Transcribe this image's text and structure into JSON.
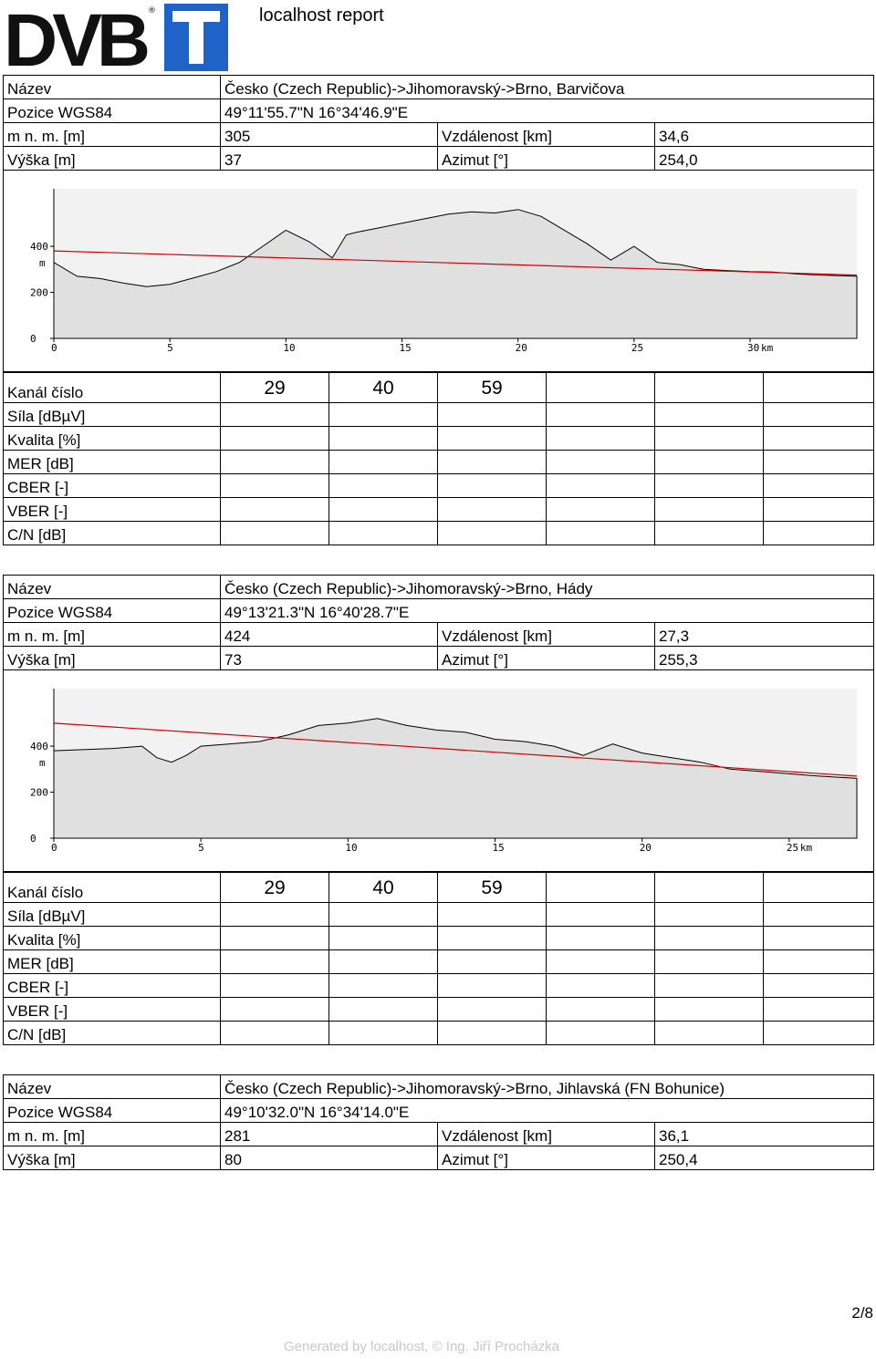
{
  "header": {
    "logo_text": "DVB-T",
    "title": "localhost report"
  },
  "labels": {
    "name": "Název",
    "position": "Pozice WGS84",
    "altitude": "m n. m. [m]",
    "distance": "Vzdálenost [km]",
    "height": "Výška [m]",
    "azimuth": "Azimut [°]",
    "channel": "Kanál číslo",
    "strength": "Síla [dBµV]",
    "quality": "Kvalita [%]",
    "mer": "MER [dB]",
    "cber": "CBER [-]",
    "vber": "VBER [-]",
    "cn": "C/N [dB]"
  },
  "sites": [
    {
      "name": "Česko (Czech Republic)->Jihomoravský->Brno, Barvičova",
      "position": "49°11'55.7\"N 16°34'46.9\"E",
      "altitude": "305",
      "distance": "34,6",
      "height": "37",
      "azimuth": "254,0",
      "channels": [
        "29",
        "40",
        "59",
        "",
        "",
        ""
      ]
    },
    {
      "name": "Česko (Czech Republic)->Jihomoravský->Brno, Hády",
      "position": "49°13'21.3\"N 16°40'28.7\"E",
      "altitude": "424",
      "distance": "27,3",
      "height": "73",
      "azimuth": "255,3",
      "channels": [
        "29",
        "40",
        "59",
        "",
        "",
        ""
      ]
    },
    {
      "name": "Česko (Czech Republic)->Jihomoravský->Brno, Jihlavská (FN Bohunice)",
      "position": "49°10'32.0\"N 16°34'14.0\"E",
      "altitude": "281",
      "distance": "36,1",
      "height": "80",
      "azimuth": "250,4"
    }
  ],
  "profiles": [
    {
      "x_ticks": [
        "0",
        "5",
        "10",
        "15",
        "20",
        "25",
        "30"
      ],
      "x_unit": "km",
      "y_ticks": [
        "0",
        "200",
        "400"
      ],
      "y_unit": "m",
      "max_km": 34.6,
      "terrain": [
        [
          0,
          330
        ],
        [
          1,
          270
        ],
        [
          2,
          260
        ],
        [
          3,
          240
        ],
        [
          4,
          225
        ],
        [
          5,
          235
        ],
        [
          6,
          262
        ],
        [
          7,
          290
        ],
        [
          8,
          330
        ],
        [
          9,
          400
        ],
        [
          10,
          470
        ],
        [
          11,
          420
        ],
        [
          12,
          350
        ],
        [
          12.6,
          450
        ],
        [
          13,
          460
        ],
        [
          14,
          480
        ],
        [
          15,
          500
        ],
        [
          16,
          520
        ],
        [
          17,
          540
        ],
        [
          18,
          550
        ],
        [
          19,
          545
        ],
        [
          20,
          560
        ],
        [
          21,
          530
        ],
        [
          22,
          470
        ],
        [
          23,
          410
        ],
        [
          24,
          340
        ],
        [
          25,
          400
        ],
        [
          26,
          330
        ],
        [
          27,
          320
        ],
        [
          28,
          300
        ],
        [
          29,
          295
        ],
        [
          30,
          290
        ],
        [
          31,
          288
        ],
        [
          32,
          280
        ],
        [
          33,
          275
        ],
        [
          34.6,
          270
        ]
      ],
      "los": [
        [
          0,
          380
        ],
        [
          34.6,
          275
        ]
      ],
      "terrain_color": "#e0e0e0",
      "los_color": "#d40000"
    },
    {
      "x_ticks": [
        "0",
        "5",
        "10",
        "15",
        "20",
        "25"
      ],
      "x_unit": "km",
      "y_ticks": [
        "0",
        "200",
        "400"
      ],
      "y_unit": "m",
      "max_km": 27.3,
      "terrain": [
        [
          0,
          380
        ],
        [
          2,
          390
        ],
        [
          3,
          400
        ],
        [
          3.5,
          350
        ],
        [
          4,
          330
        ],
        [
          4.5,
          360
        ],
        [
          5,
          400
        ],
        [
          6,
          410
        ],
        [
          7,
          420
        ],
        [
          8,
          450
        ],
        [
          9,
          490
        ],
        [
          10,
          500
        ],
        [
          11,
          520
        ],
        [
          12,
          490
        ],
        [
          13,
          470
        ],
        [
          14,
          460
        ],
        [
          15,
          430
        ],
        [
          16,
          420
        ],
        [
          17,
          400
        ],
        [
          18,
          360
        ],
        [
          19,
          410
        ],
        [
          20,
          370
        ],
        [
          21,
          350
        ],
        [
          22,
          330
        ],
        [
          23,
          300
        ],
        [
          24,
          290
        ],
        [
          25,
          280
        ],
        [
          26,
          270
        ],
        [
          27.3,
          260
        ]
      ],
      "los": [
        [
          0,
          500
        ],
        [
          27.3,
          270
        ]
      ],
      "terrain_color": "#e0e0e0",
      "los_color": "#d40000"
    }
  ],
  "page": "2/8",
  "footer": "Generated by localhost, © Ing. Jiří Procházka"
}
